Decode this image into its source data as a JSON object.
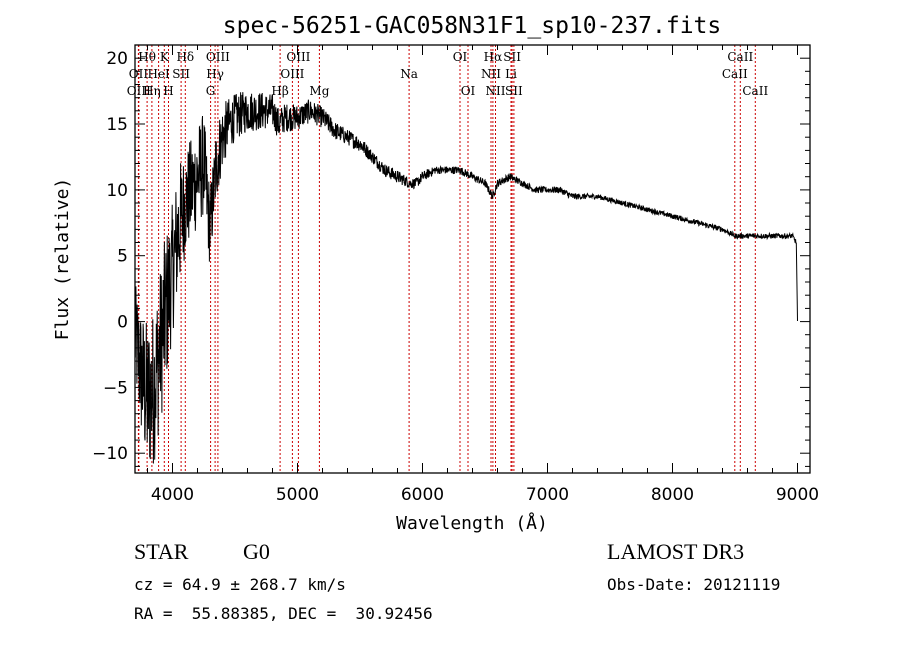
{
  "chart_data": {
    "type": "line",
    "title": "spec-56251-GAC058N31F1_sp10-237.fits",
    "xlabel": "Wavelength (Å)",
    "ylabel": "Flux (relative)",
    "xlim": [
      3700,
      9100
    ],
    "ylim": [
      -11.5,
      21
    ],
    "xticks": [
      4000,
      5000,
      6000,
      7000,
      8000,
      9000
    ],
    "yticks": [
      -10,
      -5,
      0,
      5,
      10,
      15,
      20
    ],
    "spectrum_anchors": {
      "x": [
        3700,
        3750,
        3800,
        3850,
        3900,
        3950,
        4000,
        4050,
        4100,
        4150,
        4200,
        4250,
        4300,
        4350,
        4400,
        4450,
        4500,
        4600,
        4700,
        4800,
        4850,
        4900,
        5000,
        5100,
        5200,
        5300,
        5400,
        5500,
        5600,
        5700,
        5800,
        5900,
        5950,
        6000,
        6100,
        6200,
        6300,
        6400,
        6500,
        6560,
        6600,
        6700,
        6800,
        6900,
        7000,
        7100,
        7200,
        7400,
        7600,
        7800,
        8000,
        8200,
        8400,
        8500,
        8600,
        8700,
        8800,
        8900,
        8960,
        8990,
        9000
      ],
      "y": [
        -1,
        -4,
        -6,
        -5,
        -2,
        1,
        4,
        7,
        9,
        10,
        11,
        12,
        7,
        12,
        14,
        15,
        15.5,
        16,
        16,
        16,
        15,
        15.5,
        15.5,
        16,
        15.5,
        14.5,
        14,
        13.5,
        12.5,
        11.5,
        11,
        10.5,
        10.5,
        11,
        11.5,
        11.5,
        11.5,
        11,
        10.5,
        9.5,
        10.5,
        11,
        10.5,
        10,
        10,
        10,
        9.5,
        9.5,
        9,
        8.5,
        8,
        7.5,
        7,
        6.5,
        6.5,
        6.5,
        6.5,
        6.5,
        6.5,
        6,
        0
      ],
      "noise": [
        4,
        5,
        6,
        6,
        6,
        6,
        5,
        5,
        4,
        4,
        4,
        4,
        3,
        3,
        2.5,
        2,
        1.8,
        1.6,
        1.5,
        1.3,
        1.2,
        1.1,
        1,
        0.9,
        0.8,
        0.7,
        0.6,
        0.6,
        0.5,
        0.5,
        0.5,
        0.4,
        0.4,
        0.4,
        0.3,
        0.3,
        0.3,
        0.3,
        0.3,
        0.3,
        0.3,
        0.3,
        0.25,
        0.25,
        0.25,
        0.25,
        0.25,
        0.2,
        0.2,
        0.2,
        0.2,
        0.2,
        0.2,
        0.2,
        0.2,
        0.2,
        0.2,
        0.2,
        0.2,
        0.2,
        0.1
      ]
    },
    "spectral_lines": [
      {
        "label": "Hθ",
        "wave": 3797,
        "row": 0
      },
      {
        "label": "OII",
        "wave": 3727,
        "row": 1
      },
      {
        "label": "OIII",
        "wave": 3730,
        "row": 2
      },
      {
        "label": "Hη",
        "wave": 3835,
        "row": 2
      },
      {
        "label": "K",
        "wave": 3934,
        "row": 0
      },
      {
        "label": "HeI",
        "wave": 3889,
        "row": 1
      },
      {
        "label": "SII",
        "wave": 4069,
        "row": 1
      },
      {
        "label": "H",
        "wave": 3968,
        "row": 2
      },
      {
        "label": "Hδ",
        "wave": 4102,
        "row": 0
      },
      {
        "label": "OIII",
        "wave": 4363,
        "row": 0
      },
      {
        "label": "Hγ",
        "wave": 4341,
        "row": 1
      },
      {
        "label": "G",
        "wave": 4305,
        "row": 2
      },
      {
        "label": "Hβ",
        "wave": 4861,
        "row": 2
      },
      {
        "label": "OIII",
        "wave": 5007,
        "row": 0
      },
      {
        "label": "OIII",
        "wave": 4959,
        "row": 1
      },
      {
        "label": "Mg",
        "wave": 5175,
        "row": 2
      },
      {
        "label": "Na",
        "wave": 5893,
        "row": 1
      },
      {
        "label": "OI",
        "wave": 6300,
        "row": 0
      },
      {
        "label": "OI",
        "wave": 6364,
        "row": 2
      },
      {
        "label": "Hα",
        "wave": 6563,
        "row": 0
      },
      {
        "label": "NII",
        "wave": 6548,
        "row": 1
      },
      {
        "label": "NII",
        "wave": 6584,
        "row": 2
      },
      {
        "label": "SII",
        "wave": 6717,
        "row": 0
      },
      {
        "label": "Li",
        "wave": 6708,
        "row": 1
      },
      {
        "label": "SII",
        "wave": 6731,
        "row": 2
      },
      {
        "label": "CaII",
        "wave": 8542,
        "row": 0
      },
      {
        "label": "CaII",
        "wave": 8498,
        "row": 1
      },
      {
        "label": "CaII",
        "wave": 8662,
        "row": 2
      }
    ]
  },
  "info": {
    "class": "STAR",
    "subclass": "G0",
    "survey": "LAMOST DR3",
    "cz": "cz = 64.9 ± 268.7 km/s",
    "obs_date": "Obs-Date: 20121119",
    "radec": "RA =  55.88385, DEC =  30.92456"
  },
  "colors": {
    "spectrum": "#000000",
    "line_marker": "#cc0000",
    "axes": "#000000",
    "background": "#ffffff"
  }
}
